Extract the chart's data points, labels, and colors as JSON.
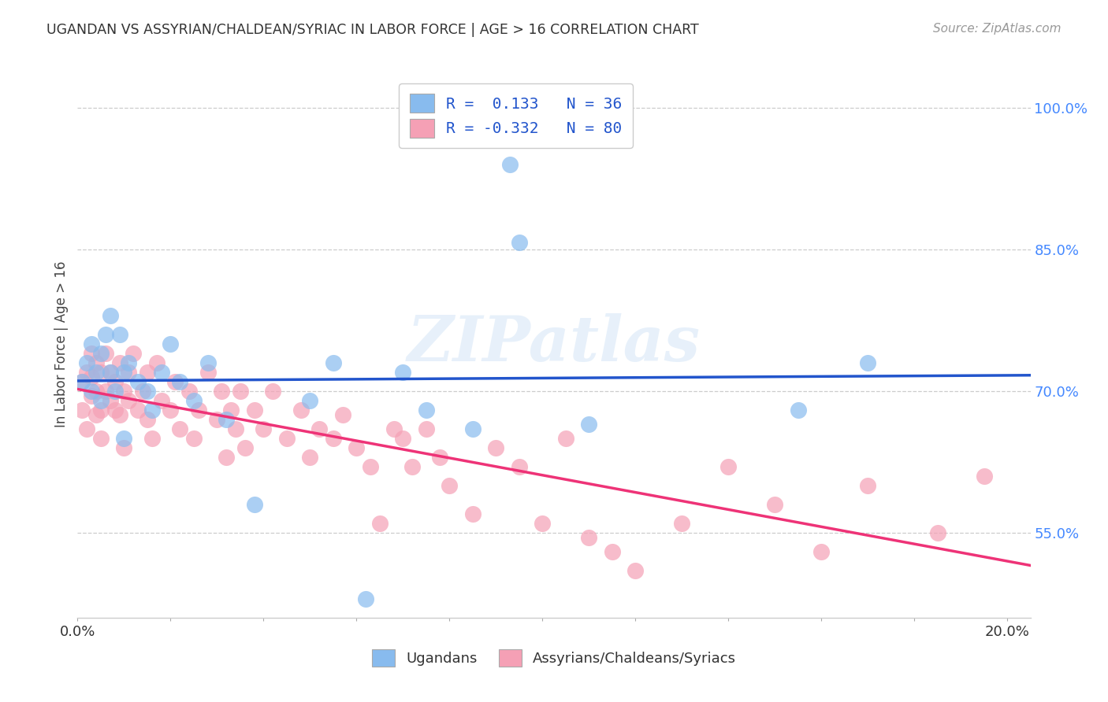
{
  "title": "UGANDAN VS ASSYRIAN/CHALDEAN/SYRIAC IN LABOR FORCE | AGE > 16 CORRELATION CHART",
  "source": "Source: ZipAtlas.com",
  "ylabel": "In Labor Force | Age > 16",
  "xlim": [
    0.0,
    0.205
  ],
  "ylim": [
    0.46,
    1.04
  ],
  "yticks": [
    0.55,
    0.7,
    0.85,
    1.0
  ],
  "ytick_labels": [
    "55.0%",
    "70.0%",
    "85.0%",
    "100.0%"
  ],
  "xticks": [
    0.0,
    0.02,
    0.04,
    0.06,
    0.08,
    0.1,
    0.12,
    0.14,
    0.16,
    0.18,
    0.2
  ],
  "xtick_labels": [
    "0.0%",
    "",
    "",
    "",
    "",
    "",
    "",
    "",
    "",
    "",
    "20.0%"
  ],
  "background_color": "#ffffff",
  "ugandan_color": "#88bbee",
  "assyrian_color": "#f5a0b5",
  "ugandan_line_color": "#2255cc",
  "assyrian_line_color": "#ee3377",
  "R_ugandan": "0.133",
  "N_ugandan": "36",
  "R_assyrian": "-0.332",
  "N_assyrian": "80",
  "watermark": "ZIPatlas",
  "legend_ugandan_label": "Ugandans",
  "legend_assyrian_label": "Assyrians/Chaldeans/Syriacs",
  "ugandan_x": [
    0.001,
    0.002,
    0.003,
    0.003,
    0.004,
    0.005,
    0.005,
    0.006,
    0.007,
    0.007,
    0.008,
    0.009,
    0.01,
    0.01,
    0.011,
    0.013,
    0.015,
    0.016,
    0.018,
    0.02,
    0.022,
    0.025,
    0.028,
    0.032,
    0.038,
    0.05,
    0.055,
    0.062,
    0.07,
    0.075,
    0.085,
    0.093,
    0.095,
    0.11,
    0.155,
    0.17
  ],
  "ugandan_y": [
    0.71,
    0.73,
    0.7,
    0.75,
    0.72,
    0.69,
    0.74,
    0.76,
    0.72,
    0.78,
    0.7,
    0.76,
    0.72,
    0.65,
    0.73,
    0.71,
    0.7,
    0.68,
    0.72,
    0.75,
    0.71,
    0.69,
    0.73,
    0.67,
    0.58,
    0.69,
    0.73,
    0.48,
    0.72,
    0.68,
    0.66,
    0.94,
    0.858,
    0.665,
    0.68,
    0.73
  ],
  "assyrian_x": [
    0.001,
    0.001,
    0.002,
    0.002,
    0.003,
    0.003,
    0.003,
    0.004,
    0.004,
    0.004,
    0.005,
    0.005,
    0.005,
    0.006,
    0.006,
    0.007,
    0.007,
    0.008,
    0.008,
    0.009,
    0.009,
    0.01,
    0.01,
    0.011,
    0.011,
    0.012,
    0.013,
    0.014,
    0.015,
    0.015,
    0.016,
    0.017,
    0.018,
    0.02,
    0.021,
    0.022,
    0.024,
    0.025,
    0.026,
    0.028,
    0.03,
    0.031,
    0.032,
    0.033,
    0.034,
    0.035,
    0.036,
    0.038,
    0.04,
    0.042,
    0.045,
    0.048,
    0.05,
    0.052,
    0.055,
    0.057,
    0.06,
    0.063,
    0.065,
    0.068,
    0.07,
    0.072,
    0.075,
    0.078,
    0.08,
    0.085,
    0.09,
    0.095,
    0.1,
    0.105,
    0.11,
    0.115,
    0.12,
    0.13,
    0.14,
    0.15,
    0.16,
    0.17,
    0.185,
    0.195
  ],
  "assyrian_y": [
    0.71,
    0.68,
    0.72,
    0.66,
    0.74,
    0.695,
    0.715,
    0.73,
    0.675,
    0.7,
    0.72,
    0.65,
    0.68,
    0.74,
    0.7,
    0.69,
    0.72,
    0.71,
    0.68,
    0.73,
    0.675,
    0.7,
    0.64,
    0.72,
    0.69,
    0.74,
    0.68,
    0.7,
    0.72,
    0.67,
    0.65,
    0.73,
    0.69,
    0.68,
    0.71,
    0.66,
    0.7,
    0.65,
    0.68,
    0.72,
    0.67,
    0.7,
    0.63,
    0.68,
    0.66,
    0.7,
    0.64,
    0.68,
    0.66,
    0.7,
    0.65,
    0.68,
    0.63,
    0.66,
    0.65,
    0.675,
    0.64,
    0.62,
    0.56,
    0.66,
    0.65,
    0.62,
    0.66,
    0.63,
    0.6,
    0.57,
    0.64,
    0.62,
    0.56,
    0.65,
    0.545,
    0.53,
    0.51,
    0.56,
    0.62,
    0.58,
    0.53,
    0.6,
    0.55,
    0.61
  ]
}
